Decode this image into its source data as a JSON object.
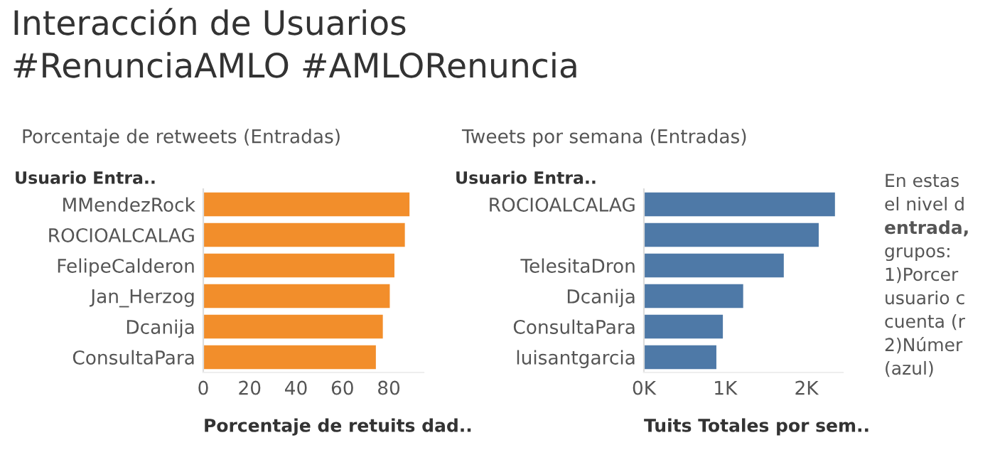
{
  "chart_data": [
    {
      "type": "bar",
      "orientation": "horizontal",
      "title": "Interacción de Usuarios\n#RenunciaAMLO #AMLORenuncia",
      "subtitle": "Porcentaje de retweets (Entradas)",
      "ylabel": "Usuario Entra..",
      "xlabel": "Porcentaje de retuits dad..",
      "categories": [
        "MMendezRock",
        "ROCIOALCALAG",
        "FelipeCalderon",
        "Jan_Herzog",
        "Dcanija",
        "ConsultaPara"
      ],
      "values": [
        88.5,
        86.5,
        82,
        80,
        77,
        74
      ],
      "color": "#f28e2b",
      "xlim": [
        0,
        95
      ],
      "xticks": [
        0,
        20,
        40,
        60,
        80
      ],
      "grid": false
    },
    {
      "type": "bar",
      "orientation": "horizontal",
      "subtitle": "Tweets por semana (Entradas)",
      "ylabel": "Usuario Entra..",
      "xlabel": "Tuits Totales por sem..",
      "categories": [
        "ROCIOALCALAG",
        null,
        "TelesitaDron",
        "Dcanija",
        "ConsultaPara",
        "luisantgarcia"
      ],
      "values": [
        2340,
        2140,
        1710,
        1210,
        960,
        880
      ],
      "color": "#4e79a7",
      "xlim": [
        0,
        2450
      ],
      "xticks": [
        {
          "value": 0,
          "label": "0K"
        },
        {
          "value": 1000,
          "label": "1K"
        },
        {
          "value": 2000,
          "label": "2K"
        }
      ],
      "grid": false
    },
    {
      "type": "other",
      "annotations": [
        "En estas",
        "el nivel d",
        "entrada,",
        "grupos:",
        "1)Porcer",
        "usuario c",
        "cuenta (r",
        "2)Númer",
        "(azul)"
      ]
    }
  ]
}
